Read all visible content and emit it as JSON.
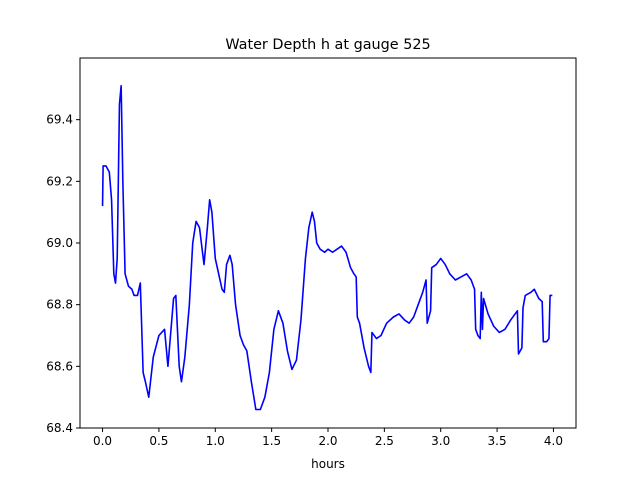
{
  "chart_data": {
    "type": "line",
    "title": "Water Depth h at gauge 525",
    "xlabel": "hours",
    "ylabel": "",
    "xlim": [
      -0.2,
      4.2
    ],
    "ylim": [
      68.4,
      69.6
    ],
    "xticks": [
      {
        "value": 0.0,
        "label": "0.0"
      },
      {
        "value": 0.5,
        "label": "0.5"
      },
      {
        "value": 1.0,
        "label": "1.0"
      },
      {
        "value": 1.5,
        "label": "1.5"
      },
      {
        "value": 2.0,
        "label": "2.0"
      },
      {
        "value": 2.5,
        "label": "2.5"
      },
      {
        "value": 3.0,
        "label": "3.0"
      },
      {
        "value": 3.5,
        "label": "3.5"
      },
      {
        "value": 4.0,
        "label": "4.0"
      }
    ],
    "yticks": [
      {
        "value": 68.4,
        "label": "68.4"
      },
      {
        "value": 68.6,
        "label": "68.6"
      },
      {
        "value": 68.8,
        "label": "68.8"
      },
      {
        "value": 69.0,
        "label": "69.0"
      },
      {
        "value": 69.2,
        "label": "69.2"
      },
      {
        "value": 69.4,
        "label": "69.4"
      }
    ],
    "grid": false,
    "series": [
      {
        "color": "#0000ff",
        "points": [
          [
            0.0,
            69.12
          ],
          [
            0.005,
            69.25
          ],
          [
            0.03,
            69.25
          ],
          [
            0.06,
            69.23
          ],
          [
            0.08,
            69.14
          ],
          [
            0.1,
            68.9
          ],
          [
            0.115,
            68.87
          ],
          [
            0.13,
            68.95
          ],
          [
            0.15,
            69.45
          ],
          [
            0.165,
            69.51
          ],
          [
            0.18,
            69.2
          ],
          [
            0.2,
            68.9
          ],
          [
            0.23,
            68.86
          ],
          [
            0.26,
            68.85
          ],
          [
            0.28,
            68.83
          ],
          [
            0.31,
            68.83
          ],
          [
            0.335,
            68.87
          ],
          [
            0.36,
            68.58
          ],
          [
            0.38,
            68.55
          ],
          [
            0.41,
            68.5
          ],
          [
            0.45,
            68.63
          ],
          [
            0.5,
            68.7
          ],
          [
            0.55,
            68.72
          ],
          [
            0.58,
            68.6
          ],
          [
            0.63,
            68.82
          ],
          [
            0.65,
            68.83
          ],
          [
            0.68,
            68.6
          ],
          [
            0.7,
            68.55
          ],
          [
            0.73,
            68.63
          ],
          [
            0.77,
            68.8
          ],
          [
            0.8,
            69.0
          ],
          [
            0.83,
            69.07
          ],
          [
            0.86,
            69.05
          ],
          [
            0.9,
            68.93
          ],
          [
            0.93,
            69.05
          ],
          [
            0.95,
            69.14
          ],
          [
            0.97,
            69.1
          ],
          [
            1.0,
            68.95
          ],
          [
            1.03,
            68.9
          ],
          [
            1.06,
            68.85
          ],
          [
            1.08,
            68.84
          ],
          [
            1.1,
            68.93
          ],
          [
            1.13,
            68.96
          ],
          [
            1.15,
            68.93
          ],
          [
            1.18,
            68.8
          ],
          [
            1.22,
            68.7
          ],
          [
            1.25,
            68.67
          ],
          [
            1.28,
            68.65
          ],
          [
            1.32,
            68.55
          ],
          [
            1.36,
            68.46
          ],
          [
            1.4,
            68.46
          ],
          [
            1.44,
            68.5
          ],
          [
            1.48,
            68.58
          ],
          [
            1.52,
            68.72
          ],
          [
            1.56,
            68.78
          ],
          [
            1.6,
            68.74
          ],
          [
            1.64,
            68.65
          ],
          [
            1.68,
            68.59
          ],
          [
            1.72,
            68.62
          ],
          [
            1.76,
            68.75
          ],
          [
            1.8,
            68.95
          ],
          [
            1.83,
            69.05
          ],
          [
            1.86,
            69.1
          ],
          [
            1.88,
            69.07
          ],
          [
            1.9,
            69.0
          ],
          [
            1.93,
            68.98
          ],
          [
            1.97,
            68.97
          ],
          [
            2.0,
            68.98
          ],
          [
            2.04,
            68.97
          ],
          [
            2.08,
            68.98
          ],
          [
            2.12,
            68.99
          ],
          [
            2.16,
            68.97
          ],
          [
            2.2,
            68.92
          ],
          [
            2.23,
            68.9
          ],
          [
            2.25,
            68.89
          ],
          [
            2.26,
            68.76
          ],
          [
            2.28,
            68.74
          ],
          [
            2.32,
            68.66
          ],
          [
            2.36,
            68.6
          ],
          [
            2.38,
            68.58
          ],
          [
            2.39,
            68.71
          ],
          [
            2.43,
            68.69
          ],
          [
            2.47,
            68.7
          ],
          [
            2.52,
            68.74
          ],
          [
            2.58,
            68.76
          ],
          [
            2.63,
            68.77
          ],
          [
            2.68,
            68.75
          ],
          [
            2.72,
            68.74
          ],
          [
            2.76,
            68.76
          ],
          [
            2.8,
            68.8
          ],
          [
            2.84,
            68.84
          ],
          [
            2.87,
            68.88
          ],
          [
            2.88,
            68.74
          ],
          [
            2.91,
            68.78
          ],
          [
            2.92,
            68.92
          ],
          [
            2.96,
            68.93
          ],
          [
            3.0,
            68.95
          ],
          [
            3.04,
            68.93
          ],
          [
            3.08,
            68.9
          ],
          [
            3.13,
            68.88
          ],
          [
            3.18,
            68.89
          ],
          [
            3.23,
            68.9
          ],
          [
            3.27,
            68.88
          ],
          [
            3.3,
            68.85
          ],
          [
            3.31,
            68.72
          ],
          [
            3.33,
            68.7
          ],
          [
            3.35,
            68.69
          ],
          [
            3.36,
            68.84
          ],
          [
            3.37,
            68.72
          ],
          [
            3.38,
            68.82
          ],
          [
            3.42,
            68.77
          ],
          [
            3.47,
            68.73
          ],
          [
            3.52,
            68.71
          ],
          [
            3.57,
            68.72
          ],
          [
            3.62,
            68.75
          ],
          [
            3.68,
            68.78
          ],
          [
            3.69,
            68.64
          ],
          [
            3.72,
            68.66
          ],
          [
            3.73,
            68.79
          ],
          [
            3.75,
            68.83
          ],
          [
            3.8,
            68.84
          ],
          [
            3.83,
            68.85
          ],
          [
            3.87,
            68.82
          ],
          [
            3.9,
            68.81
          ],
          [
            3.91,
            68.68
          ],
          [
            3.94,
            68.68
          ],
          [
            3.96,
            68.69
          ],
          [
            3.97,
            68.83
          ],
          [
            3.99,
            68.83
          ]
        ]
      }
    ]
  }
}
